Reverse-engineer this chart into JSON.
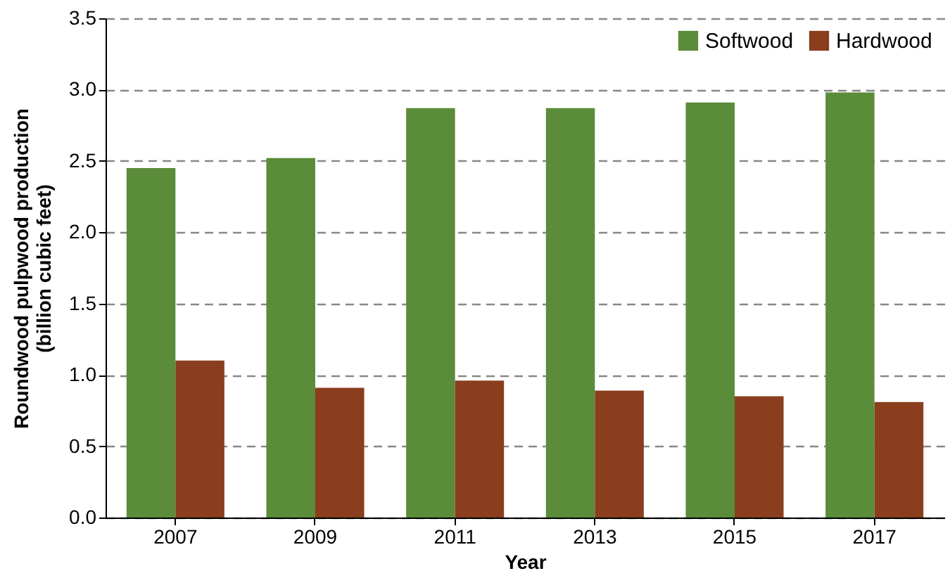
{
  "chart_data": {
    "type": "bar",
    "xlabel": "Year",
    "ylabel": "Roundwood pulpwood production (billion cubic feet)",
    "categories": [
      "2007",
      "2009",
      "2011",
      "2013",
      "2015",
      "2017"
    ],
    "series": [
      {
        "name": "Softwood",
        "color": "#5b8c3a",
        "values": [
          2.45,
          2.52,
          2.87,
          2.87,
          2.91,
          2.98
        ]
      },
      {
        "name": "Hardwood",
        "color": "#8a3e1e",
        "values": [
          1.1,
          0.91,
          0.96,
          0.89,
          0.85,
          0.81
        ]
      }
    ],
    "ylim": [
      0,
      3.5
    ],
    "yticks": [
      {
        "value": 0,
        "label": "0.0"
      },
      0.5,
      {
        "value": 1,
        "label": "1.0"
      },
      1.5,
      {
        "value": 2,
        "label": "2.0"
      },
      2.5,
      {
        "value": 3,
        "label": "3.0"
      },
      3.5
    ],
    "grid": "y",
    "legend": "top right"
  }
}
